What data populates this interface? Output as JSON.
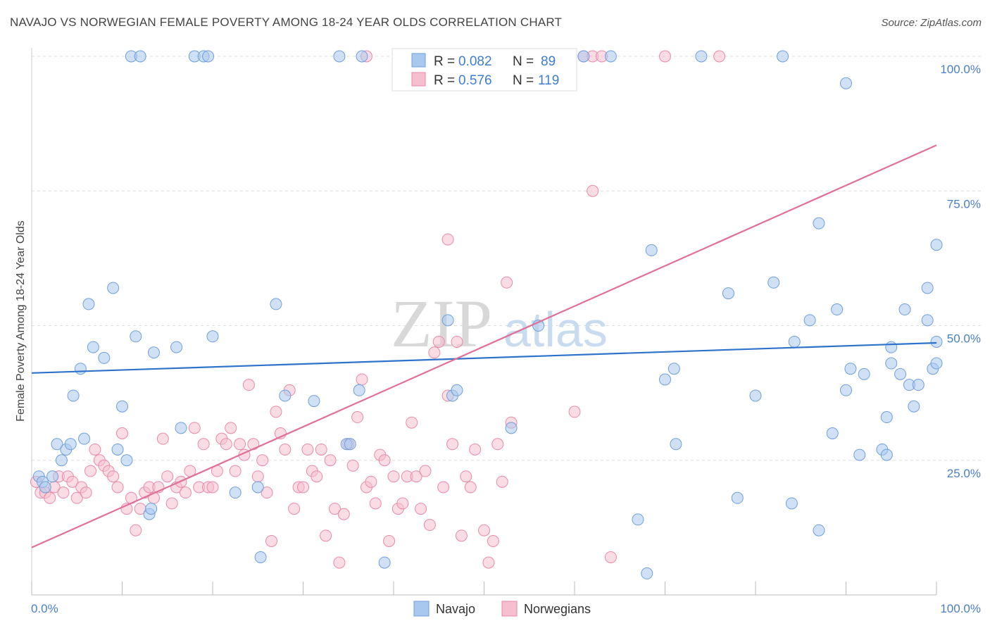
{
  "header": {
    "title": "NAVAJO VS NORWEGIAN FEMALE POVERTY AMONG 18-24 YEAR OLDS CORRELATION CHART",
    "source": "Source: ZipAtlas.com"
  },
  "watermark": {
    "zip": "ZIP",
    "atlas": "atlas"
  },
  "stats_legend": [
    {
      "r_label": "R =",
      "r_value": "0.082",
      "n_label": "N =",
      "n_value": "89",
      "color": "#a9c8ef",
      "stroke": "#6f9fdc"
    },
    {
      "r_label": "R =",
      "r_value": "0.576",
      "n_label": "N =",
      "n_value": "119",
      "color": "#f6bfd0",
      "stroke": "#e98aa9"
    }
  ],
  "colors": {
    "navajo_fill": "#a9c8ef",
    "navajo_stroke": "#6f9fdc",
    "navajo_line": "#2f72c9",
    "norwegian_fill": "#f6bfd0",
    "norwegian_stroke": "#e98aa9",
    "norwegian_line": "#e0709a",
    "tick_color": "#4a7fc8",
    "grid": "#dddddd"
  },
  "chart_data": {
    "type": "scatter",
    "ylabel": "Female Poverty Among 18-24 Year Olds",
    "xlim": [
      0,
      100
    ],
    "ylim": [
      0,
      100
    ],
    "x_tick_labels": [
      {
        "value": 0,
        "label": "0.0%"
      },
      {
        "value": 100,
        "label": "100.0%"
      }
    ],
    "y_tick_labels": [
      {
        "value": 25,
        "label": "25.0%"
      },
      {
        "value": 50,
        "label": "50.0%"
      },
      {
        "value": 75,
        "label": "75.0%"
      },
      {
        "value": 100,
        "label": "100.0%"
      }
    ],
    "legend": [
      {
        "name": "Navajo"
      },
      {
        "name": "Norwegians"
      }
    ],
    "series": [
      {
        "name": "Navajo",
        "trend": {
          "x": [
            0,
            100
          ],
          "y": [
            41.2,
            46.8
          ]
        },
        "points": [
          [
            0.8,
            22
          ],
          [
            1.2,
            21
          ],
          [
            1.5,
            20
          ],
          [
            2.3,
            22
          ],
          [
            2.8,
            28
          ],
          [
            3.3,
            25
          ],
          [
            3.8,
            27
          ],
          [
            4.3,
            28
          ],
          [
            4.6,
            37
          ],
          [
            5.4,
            42
          ],
          [
            5.8,
            29
          ],
          [
            6.3,
            54
          ],
          [
            6.8,
            46
          ],
          [
            8,
            44
          ],
          [
            9,
            57
          ],
          [
            9.5,
            27
          ],
          [
            10,
            35
          ],
          [
            10.5,
            25
          ],
          [
            11,
            100
          ],
          [
            12,
            100
          ],
          [
            11.5,
            48
          ],
          [
            13,
            15
          ],
          [
            13.2,
            16
          ],
          [
            13.5,
            45
          ],
          [
            16,
            46
          ],
          [
            16.5,
            31
          ],
          [
            18,
            100
          ],
          [
            19,
            100
          ],
          [
            19.5,
            100
          ],
          [
            20,
            48
          ],
          [
            22.5,
            19
          ],
          [
            25,
            20
          ],
          [
            25.3,
            7
          ],
          [
            27,
            54
          ],
          [
            28,
            37
          ],
          [
            31.2,
            36
          ],
          [
            34,
            100
          ],
          [
            34.8,
            28
          ],
          [
            35.2,
            28
          ],
          [
            36.2,
            38
          ],
          [
            36.5,
            100
          ],
          [
            39,
            6
          ],
          [
            46,
            51
          ],
          [
            46.5,
            37
          ],
          [
            47,
            38
          ],
          [
            53,
            31
          ],
          [
            56,
            50
          ],
          [
            61,
            100
          ],
          [
            64,
            100
          ],
          [
            67,
            14
          ],
          [
            68,
            4
          ],
          [
            68.5,
            64
          ],
          [
            70,
            40
          ],
          [
            71,
            42
          ],
          [
            71.2,
            28
          ],
          [
            74,
            100
          ],
          [
            77,
            56
          ],
          [
            78,
            18
          ],
          [
            80,
            37
          ],
          [
            82,
            58
          ],
          [
            83,
            100
          ],
          [
            84,
            17
          ],
          [
            84.3,
            47
          ],
          [
            86,
            51
          ],
          [
            87,
            69
          ],
          [
            87,
            12
          ],
          [
            88.5,
            30
          ],
          [
            89,
            53
          ],
          [
            90,
            95
          ],
          [
            90,
            38
          ],
          [
            90.5,
            42
          ],
          [
            91.5,
            26
          ],
          [
            92,
            41
          ],
          [
            94,
            27
          ],
          [
            94.5,
            26
          ],
          [
            94.5,
            33
          ],
          [
            95,
            46
          ],
          [
            95,
            43
          ],
          [
            96.5,
            53
          ],
          [
            96,
            41
          ],
          [
            97,
            39
          ],
          [
            97.5,
            35
          ],
          [
            98,
            39
          ],
          [
            99,
            51
          ],
          [
            99,
            57
          ],
          [
            99.6,
            42
          ],
          [
            100,
            43
          ],
          [
            100.5,
            47
          ],
          [
            100.5,
            65
          ]
        ]
      },
      {
        "name": "Norwegians",
        "trend": {
          "x": [
            0,
            100
          ],
          "y": [
            8.8,
            83.5
          ]
        },
        "points": [
          [
            0.5,
            21
          ],
          [
            1,
            19
          ],
          [
            1.5,
            19
          ],
          [
            2,
            18
          ],
          [
            2.5,
            20
          ],
          [
            3,
            22
          ],
          [
            3.5,
            19
          ],
          [
            4,
            22
          ],
          [
            4.5,
            21
          ],
          [
            5,
            18
          ],
          [
            5.5,
            20
          ],
          [
            6,
            19
          ],
          [
            6.5,
            23
          ],
          [
            7,
            27
          ],
          [
            7.5,
            25
          ],
          [
            8,
            24
          ],
          [
            8.5,
            23
          ],
          [
            9,
            22
          ],
          [
            9.5,
            20
          ],
          [
            10,
            30
          ],
          [
            10.5,
            16
          ],
          [
            11,
            18
          ],
          [
            11.5,
            12
          ],
          [
            12,
            16
          ],
          [
            12.5,
            19
          ],
          [
            13,
            20
          ],
          [
            13.5,
            18
          ],
          [
            14,
            20
          ],
          [
            14.5,
            29
          ],
          [
            15,
            22
          ],
          [
            15.5,
            17
          ],
          [
            16,
            20
          ],
          [
            16.5,
            21
          ],
          [
            17,
            19
          ],
          [
            17.5,
            23
          ],
          [
            18,
            31
          ],
          [
            18.5,
            20
          ],
          [
            19,
            28
          ],
          [
            19.5,
            20
          ],
          [
            20,
            20
          ],
          [
            20.5,
            23
          ],
          [
            21,
            29
          ],
          [
            21.5,
            28
          ],
          [
            22,
            31
          ],
          [
            22.5,
            23
          ],
          [
            23,
            28
          ],
          [
            23.5,
            26
          ],
          [
            24,
            39
          ],
          [
            24.5,
            28
          ],
          [
            25,
            22
          ],
          [
            25.5,
            25
          ],
          [
            26,
            19
          ],
          [
            26.5,
            10
          ],
          [
            27,
            34
          ],
          [
            27.5,
            30
          ],
          [
            28,
            27
          ],
          [
            28.5,
            38
          ],
          [
            29,
            16
          ],
          [
            29.5,
            20
          ],
          [
            30,
            20
          ],
          [
            30.5,
            27
          ],
          [
            31,
            23
          ],
          [
            31.5,
            22
          ],
          [
            32,
            27
          ],
          [
            32.5,
            11
          ],
          [
            33,
            25
          ],
          [
            33.5,
            16
          ],
          [
            34,
            6
          ],
          [
            34.5,
            15
          ],
          [
            35,
            28
          ],
          [
            35.5,
            24
          ],
          [
            36,
            33
          ],
          [
            36.5,
            40
          ],
          [
            37,
            20
          ],
          [
            37.5,
            21
          ],
          [
            38,
            17
          ],
          [
            38.5,
            26
          ],
          [
            39,
            25
          ],
          [
            39.5,
            10
          ],
          [
            40,
            22
          ],
          [
            40.5,
            16
          ],
          [
            41,
            17
          ],
          [
            41.5,
            22
          ],
          [
            42,
            32
          ],
          [
            42.5,
            22
          ],
          [
            43,
            16
          ],
          [
            43.5,
            23
          ],
          [
            44,
            13
          ],
          [
            44.5,
            45
          ],
          [
            45,
            47
          ],
          [
            45.5,
            20
          ],
          [
            46,
            37
          ],
          [
            46.5,
            28
          ],
          [
            47,
            47
          ],
          [
            47.5,
            11
          ],
          [
            48,
            22
          ],
          [
            48.5,
            20
          ],
          [
            49,
            27
          ],
          [
            49.5,
            100
          ],
          [
            50,
            12
          ],
          [
            50.5,
            6
          ],
          [
            51,
            10
          ],
          [
            51.5,
            28
          ],
          [
            52,
            21
          ],
          [
            52.5,
            58
          ],
          [
            53,
            32
          ],
          [
            53.5,
            100
          ],
          [
            54,
            100
          ],
          [
            55,
            100
          ],
          [
            58,
            100
          ],
          [
            60,
            34
          ],
          [
            61,
            100
          ],
          [
            62,
            100
          ],
          [
            62,
            75
          ],
          [
            63,
            100
          ],
          [
            64,
            7
          ],
          [
            70,
            100
          ],
          [
            76,
            100
          ],
          [
            46,
            66
          ],
          [
            37,
            100
          ]
        ]
      }
    ]
  }
}
